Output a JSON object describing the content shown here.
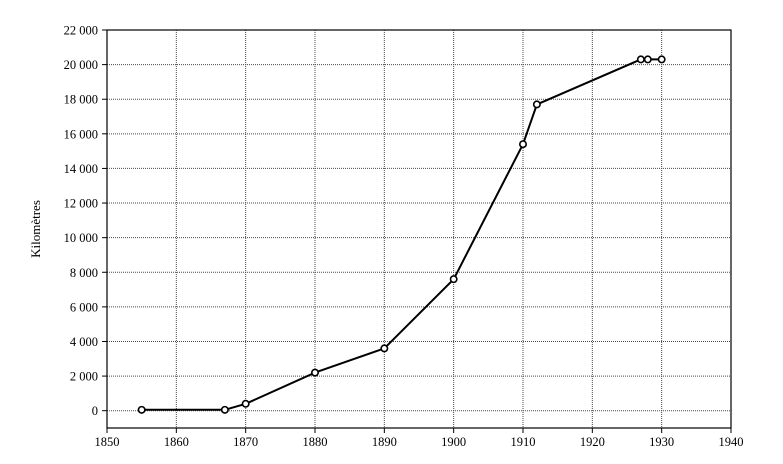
{
  "chart_data": {
    "type": "line",
    "title": "",
    "xlabel": "",
    "ylabel": "Kilomètres",
    "xlim": [
      1850,
      1940
    ],
    "ylim": [
      -1000,
      22000
    ],
    "grid": true,
    "x_ticks": [
      1850,
      1860,
      1870,
      1880,
      1890,
      1900,
      1910,
      1920,
      1930,
      1940
    ],
    "x_tick_labels": [
      "1850",
      "1860",
      "1870",
      "1880",
      "1890",
      "1900",
      "1910",
      "1920",
      "1930",
      "1940"
    ],
    "y_ticks": [
      0,
      2000,
      4000,
      6000,
      8000,
      10000,
      12000,
      14000,
      16000,
      18000,
      20000,
      22000
    ],
    "y_tick_labels": [
      "0",
      "2 000",
      "4 000",
      "6 000",
      "8 000",
      "10 000",
      "12 000",
      "14 000",
      "16 000",
      "18 000",
      "20 000",
      "22 000"
    ],
    "series": [
      {
        "x": [
          1855,
          1867,
          1870,
          1880,
          1890,
          1900,
          1910,
          1912,
          1927,
          1928,
          1930
        ],
        "values": [
          50,
          50,
          400,
          2200,
          3600,
          7600,
          15400,
          17700,
          20300,
          20300,
          20300
        ]
      }
    ],
    "colors": {
      "line": "#000000",
      "marker_fill": "#ffffff",
      "grid": "#4a4a4a"
    }
  }
}
